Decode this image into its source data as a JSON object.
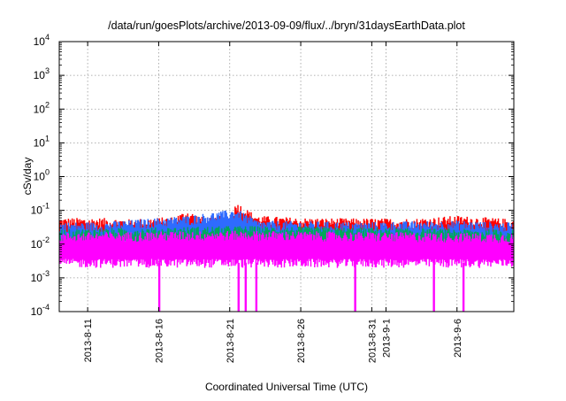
{
  "chart_data": {
    "type": "area",
    "title": "/data/run/goesPlots/archive/2013-09-09/flux/../bryn/31daysEarthData.plot",
    "xlabel": "Coordinated Universal Time (UTC)",
    "ylabel": "cSv/day",
    "y_scale": "log",
    "ylim": [
      0.0001,
      10000
    ],
    "xlim": [
      "2013-08-09",
      "2013-09-10"
    ],
    "grid": true,
    "legend": "none",
    "x_ticks": [
      "2013-8-11",
      "2013-8-16",
      "2013-8-21",
      "2013-8-26",
      "2013-8-31",
      "2013-9-1",
      "2013-9-6"
    ],
    "y_ticks": [
      {
        "value": 0.0001,
        "base": "10",
        "exp": "-4"
      },
      {
        "value": 0.001,
        "base": "10",
        "exp": "-3"
      },
      {
        "value": 0.01,
        "base": "10",
        "exp": "-2"
      },
      {
        "value": 0.1,
        "base": "10",
        "exp": "-1"
      },
      {
        "value": 1,
        "base": "10",
        "exp": "0"
      },
      {
        "value": 10,
        "base": "10",
        "exp": "1"
      },
      {
        "value": 100,
        "base": "10",
        "exp": "2"
      },
      {
        "value": 1000,
        "base": "10",
        "exp": "3"
      },
      {
        "value": 10000,
        "base": "10",
        "exp": "4"
      }
    ],
    "series": [
      {
        "color": "#ff0000",
        "band": [
          0.012,
          0.06
        ],
        "points": [
          {
            "x": "2013-08-09",
            "y": 0.06
          },
          {
            "x": "2013-08-12",
            "y": 0.06
          },
          {
            "x": "2013-08-14",
            "y": 0.055
          },
          {
            "x": "2013-08-17",
            "y": 0.065
          },
          {
            "x": "2013-08-18",
            "y": 0.1
          },
          {
            "x": "2013-08-19",
            "y": 0.065
          },
          {
            "x": "2013-08-21",
            "y": 0.07
          },
          {
            "x": "2013-08-21T12:00",
            "y": 0.18
          },
          {
            "x": "2013-08-22",
            "y": 0.12
          },
          {
            "x": "2013-08-23",
            "y": 0.07
          },
          {
            "x": "2013-08-26",
            "y": 0.06
          },
          {
            "x": "2013-08-30",
            "y": 0.058
          },
          {
            "x": "2013-09-03",
            "y": 0.058
          },
          {
            "x": "2013-09-06",
            "y": 0.07
          },
          {
            "x": "2013-09-10",
            "y": 0.055
          }
        ]
      },
      {
        "color": "#2e6bff",
        "band": [
          0.01,
          0.045
        ],
        "points": [
          {
            "x": "2013-08-09",
            "y": 0.045
          },
          {
            "x": "2013-08-12",
            "y": 0.045
          },
          {
            "x": "2013-08-18",
            "y": 0.07
          },
          {
            "x": "2013-08-21T12:00",
            "y": 0.11
          },
          {
            "x": "2013-08-23",
            "y": 0.05
          },
          {
            "x": "2013-08-30",
            "y": 0.045
          },
          {
            "x": "2013-09-06",
            "y": 0.05
          },
          {
            "x": "2013-09-10",
            "y": 0.043
          }
        ]
      },
      {
        "color": "#00a65a",
        "band": [
          0.01,
          0.028
        ],
        "points": [
          {
            "x": "2013-08-09",
            "y": 0.028
          },
          {
            "x": "2013-08-21T12:00",
            "y": 0.035
          },
          {
            "x": "2013-09-10",
            "y": 0.027
          }
        ]
      },
      {
        "color": "#ff00ff",
        "band": [
          0.0028,
          0.022
        ],
        "points": [
          {
            "x": "2013-08-09",
            "y": 0.022
          },
          {
            "x": "2013-08-21T12:00",
            "y": 0.025
          },
          {
            "x": "2013-09-10",
            "y": 0.021
          }
        ],
        "drops": [
          {
            "x": "2013-08-16T01:00",
            "y": 0.0001
          },
          {
            "x": "2013-08-21T15:00",
            "y": 0.0001
          },
          {
            "x": "2013-08-22T03:00",
            "y": 0.0001
          },
          {
            "x": "2013-08-22T21:00",
            "y": 0.0001
          },
          {
            "x": "2013-08-29T20:00",
            "y": 0.0001
          },
          {
            "x": "2013-09-04T09:00",
            "y": 0.0001
          },
          {
            "x": "2013-09-06T11:00",
            "y": 0.0001
          }
        ]
      }
    ]
  }
}
